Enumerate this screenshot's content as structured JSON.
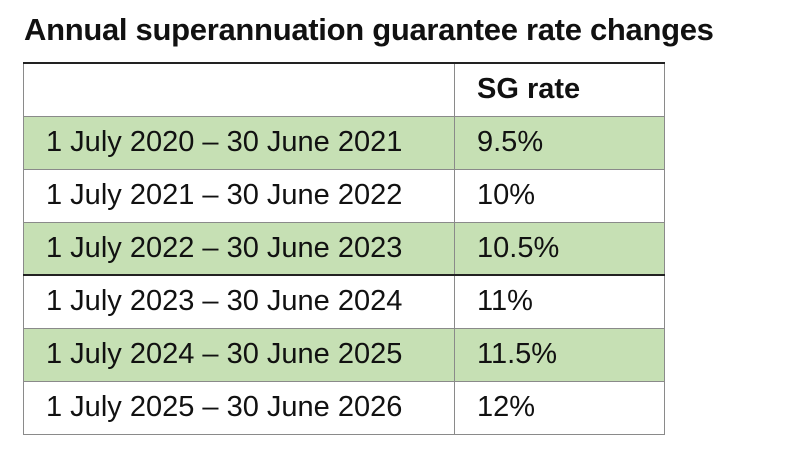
{
  "title": "Annual superannuation guarantee rate changes",
  "table": {
    "columns": [
      "",
      "SG rate"
    ],
    "rows": [
      {
        "period": "1 July 2020 – 30 June 2021",
        "rate": "9.5%",
        "shaded": true
      },
      {
        "period": "1 July 2021 – 30 June 2022",
        "rate": "10%",
        "shaded": false
      },
      {
        "period": "1 July 2022 – 30 June 2023",
        "rate": "10.5%",
        "shaded": true
      },
      {
        "period": "1 July 2023 – 30 June 2024",
        "rate": "11%",
        "shaded": false
      },
      {
        "period": "1 July 2024 – 30 June 2025",
        "rate": "11.5%",
        "shaded": true
      },
      {
        "period": "1 July 2025 – 30 June 2026",
        "rate": "12%",
        "shaded": false
      }
    ]
  },
  "colors": {
    "shaded_row": "#c6e0b4",
    "border": "#8a8a8a"
  }
}
